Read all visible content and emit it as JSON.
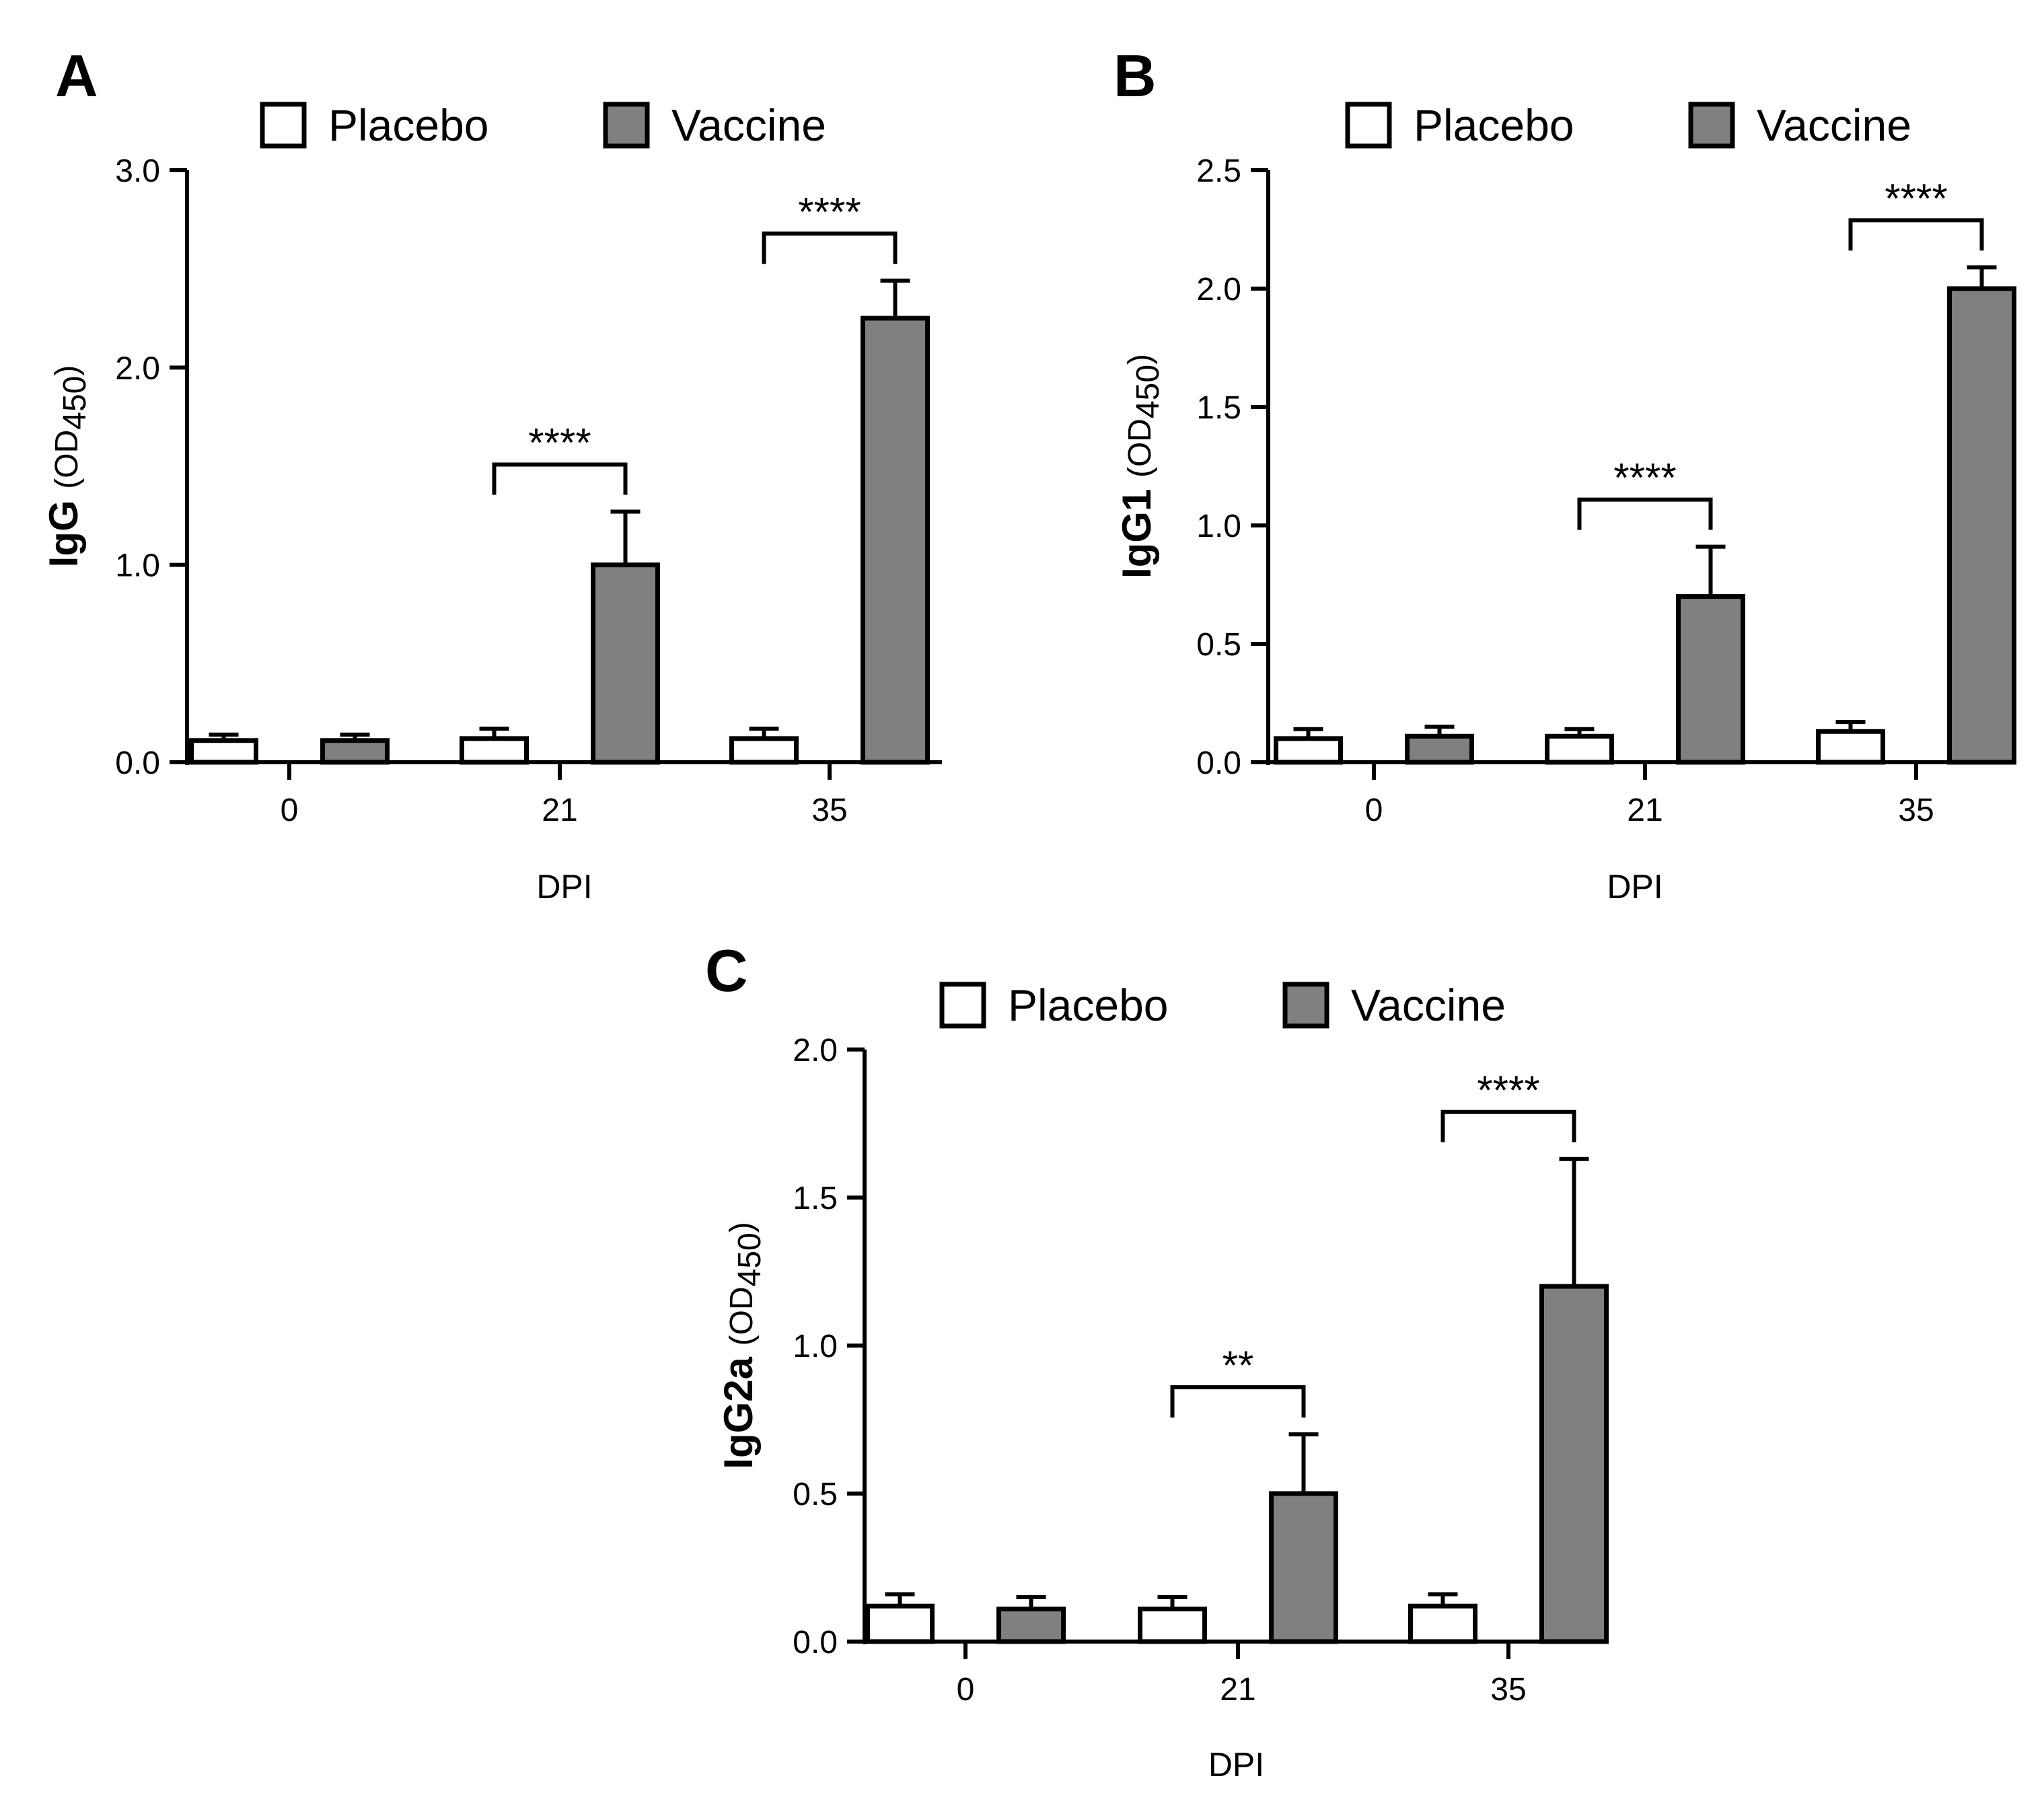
{
  "figure": {
    "legend": {
      "placebo_label": "Placebo",
      "vaccine_label": "Vaccine",
      "placebo_color": "#ffffff",
      "vaccine_color": "#808080"
    }
  },
  "chart_data": [
    {
      "panel": "A",
      "type": "bar",
      "ylabel": "IgG",
      "ylabel_unit": "(OD",
      "ylabel_sub": "450",
      "ylabel_close": ")",
      "xlabel": "DPI",
      "categories": [
        "0",
        "21",
        "35"
      ],
      "ylim": [
        0,
        3.0
      ],
      "yticks": [
        "0.0",
        "1.0",
        "2.0",
        "3.0"
      ],
      "series": [
        {
          "name": "Placebo",
          "values": [
            0.11,
            0.12,
            0.12
          ],
          "errors": [
            0.03,
            0.05,
            0.05
          ]
        },
        {
          "name": "Vaccine",
          "values": [
            0.11,
            1.0,
            2.25
          ],
          "errors": [
            0.03,
            0.27,
            0.19
          ]
        }
      ],
      "significance": [
        {
          "category": "21",
          "label": "****"
        },
        {
          "category": "35",
          "label": "****"
        }
      ]
    },
    {
      "panel": "B",
      "type": "bar",
      "ylabel": "IgG1",
      "ylabel_unit": "(OD",
      "ylabel_sub": "450",
      "ylabel_close": ")",
      "xlabel": "DPI",
      "categories": [
        "0",
        "21",
        "35"
      ],
      "ylim": [
        0,
        2.5
      ],
      "yticks": [
        "0.0",
        "0.5",
        "1.0",
        "1.5",
        "2.0",
        "2.5"
      ],
      "series": [
        {
          "name": "Placebo",
          "values": [
            0.1,
            0.11,
            0.13
          ],
          "errors": [
            0.04,
            0.03,
            0.04
          ]
        },
        {
          "name": "Vaccine",
          "values": [
            0.11,
            0.7,
            2.0
          ],
          "errors": [
            0.04,
            0.21,
            0.09
          ]
        }
      ],
      "significance": [
        {
          "category": "21",
          "label": "****"
        },
        {
          "category": "35",
          "label": "****"
        }
      ]
    },
    {
      "panel": "C",
      "type": "bar",
      "ylabel": "IgG2a",
      "ylabel_unit": "(OD",
      "ylabel_sub": "450",
      "ylabel_close": ")",
      "xlabel": "DPI",
      "categories": [
        "0",
        "21",
        "35"
      ],
      "ylim": [
        0,
        2.0
      ],
      "yticks": [
        "0.0",
        "0.5",
        "1.0",
        "1.5",
        "2.0"
      ],
      "series": [
        {
          "name": "Placebo",
          "values": [
            0.12,
            0.11,
            0.12
          ],
          "errors": [
            0.04,
            0.04,
            0.04
          ]
        },
        {
          "name": "Vaccine",
          "values": [
            0.11,
            0.5,
            1.2
          ],
          "errors": [
            0.04,
            0.2,
            0.43
          ]
        }
      ],
      "significance": [
        {
          "category": "21",
          "label": "**"
        },
        {
          "category": "35",
          "label": "****"
        }
      ]
    }
  ]
}
